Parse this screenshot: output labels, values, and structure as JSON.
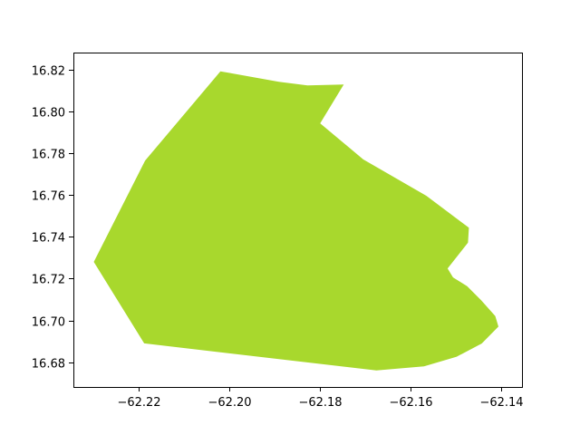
{
  "chart_data": {
    "type": "area",
    "title": "",
    "xlabel": "",
    "ylabel": "",
    "xlim": [
      -62.2343,
      -62.1354
    ],
    "ylim": [
      16.6681,
      16.8283
    ],
    "grid": false,
    "x_ticks": [
      {
        "value": -62.22,
        "label": "−62.22"
      },
      {
        "value": -62.2,
        "label": "−62.20"
      },
      {
        "value": -62.18,
        "label": "−62.18"
      },
      {
        "value": -62.16,
        "label": "−62.16"
      },
      {
        "value": -62.14,
        "label": "−62.14"
      }
    ],
    "y_ticks": [
      {
        "value": 16.68,
        "label": "16.68"
      },
      {
        "value": 16.7,
        "label": "16.70"
      },
      {
        "value": 16.72,
        "label": "16.72"
      },
      {
        "value": 16.74,
        "label": "16.74"
      },
      {
        "value": 16.76,
        "label": "16.76"
      },
      {
        "value": 16.78,
        "label": "16.78"
      },
      {
        "value": 16.8,
        "label": "16.80"
      },
      {
        "value": 16.82,
        "label": "16.82"
      }
    ],
    "shape": {
      "fill": "#a8d82d",
      "points": [
        [
          -62.2019,
          16.8193
        ],
        [
          -62.189,
          16.8143
        ],
        [
          -62.1827,
          16.8126
        ],
        [
          -62.1747,
          16.813
        ],
        [
          -62.1799,
          16.7944
        ],
        [
          -62.1704,
          16.7771
        ],
        [
          -62.1565,
          16.7597
        ],
        [
          -62.1471,
          16.7444
        ],
        [
          -62.1473,
          16.7372
        ],
        [
          -62.1518,
          16.7249
        ],
        [
          -62.1506,
          16.7206
        ],
        [
          -62.1475,
          16.7164
        ],
        [
          -62.1444,
          16.7096
        ],
        [
          -62.1413,
          16.7021
        ],
        [
          -62.1406,
          16.697
        ],
        [
          -62.1443,
          16.6889
        ],
        [
          -62.1498,
          16.6826
        ],
        [
          -62.157,
          16.678
        ],
        [
          -62.1675,
          16.676
        ],
        [
          -62.2187,
          16.689
        ],
        [
          -62.2298,
          16.728
        ],
        [
          -62.2185,
          16.7765
        ],
        [
          -62.2019,
          16.8193
        ]
      ]
    }
  }
}
